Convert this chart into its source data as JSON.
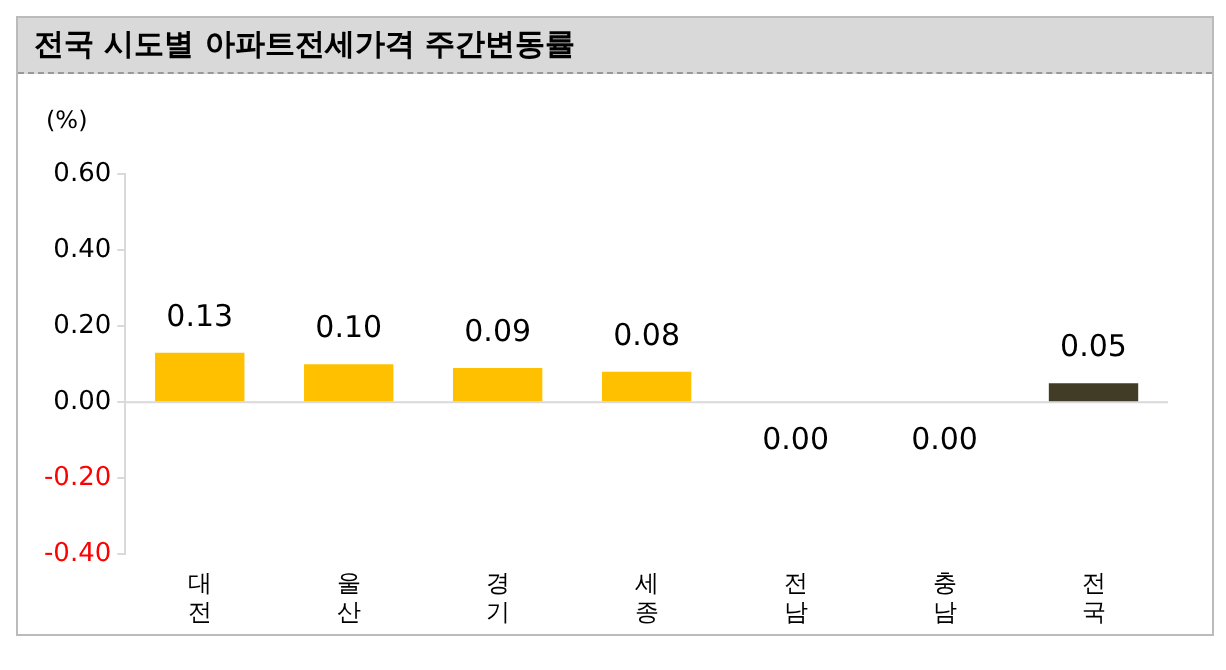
{
  "chart_data": {
    "type": "bar",
    "title": "전국 시도별 아파트전세가격 주간변동률",
    "ylabel": "(%)",
    "categories": [
      "대전",
      "울산",
      "경기",
      "세종",
      "전남",
      "충남",
      "전국"
    ],
    "values": [
      0.13,
      0.1,
      0.09,
      0.08,
      0.0,
      0.0,
      0.05
    ],
    "value_labels": [
      "0.13",
      "0.10",
      "0.09",
      "0.08",
      "0.00",
      "0.00",
      "0.05"
    ],
    "colors": [
      "#ffc000",
      "#ffc000",
      "#ffc000",
      "#ffc000",
      "#ffc000",
      "#ffc000",
      "#403c26"
    ],
    "ylim": [
      -0.4,
      0.6
    ],
    "yticks": [
      {
        "value": -0.4,
        "label": "-0.40"
      },
      {
        "value": -0.2,
        "label": "-0.20"
      },
      {
        "value": 0,
        "label": "0.00"
      },
      {
        "value": 0.2,
        "label": "0.20"
      },
      {
        "value": 0.4,
        "label": "0.40"
      },
      {
        "value": 0.6,
        "label": "0.60"
      }
    ],
    "ref_lines": [
      {
        "axis": "y",
        "value": 0,
        "color": "#d9d9d9"
      }
    ],
    "grid": false,
    "legend": false
  }
}
